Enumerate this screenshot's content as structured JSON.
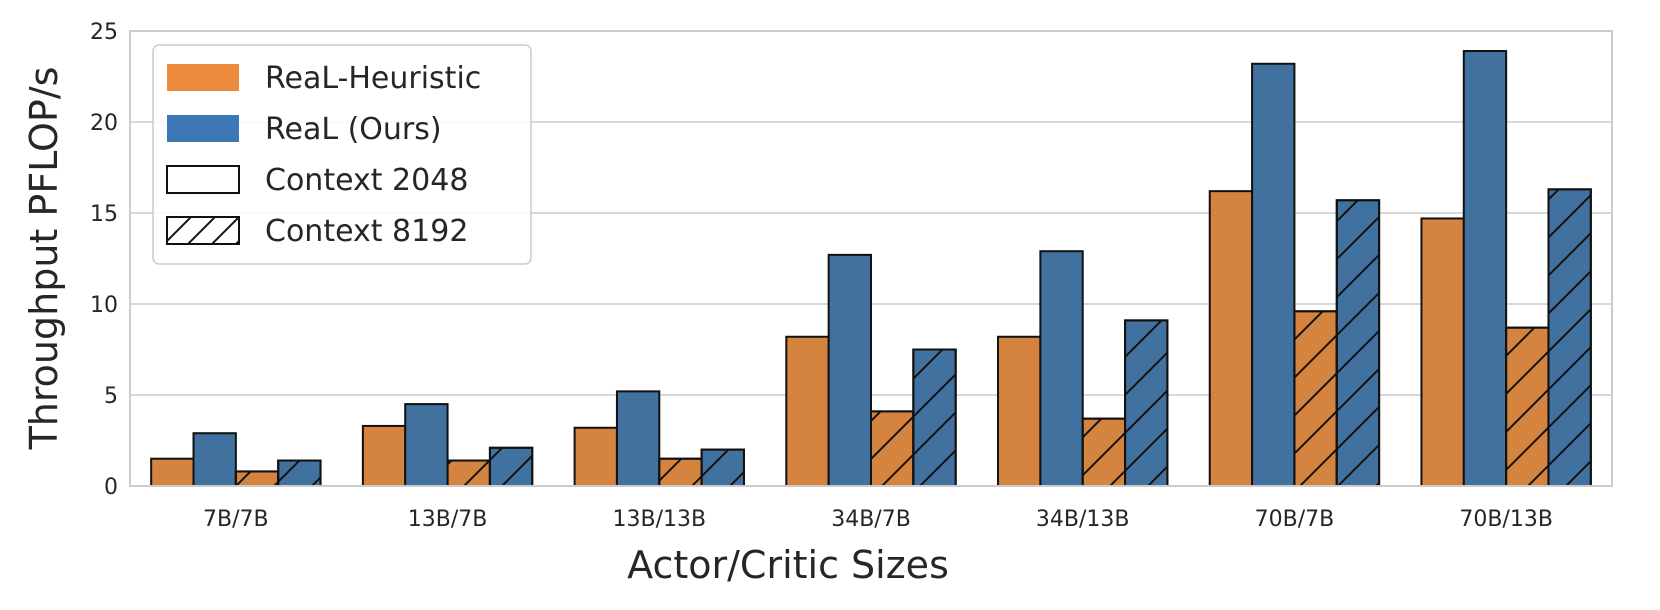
{
  "chart_data": {
    "type": "bar",
    "title": "",
    "xlabel": "Actor/Critic Sizes",
    "ylabel": "Throughput PFLOP/s",
    "ylim": [
      0,
      25
    ],
    "yticks": [
      0,
      5,
      10,
      15,
      20,
      25
    ],
    "grid": true,
    "legend_position": "top-left",
    "categories": [
      "7B/7B",
      "13B/7B",
      "13B/13B",
      "34B/7B",
      "34B/13B",
      "70B/7B",
      "70B/13B"
    ],
    "series": [
      {
        "name": "ReaL-Heuristic",
        "context": "Context 2048",
        "color": "#d5843f",
        "hatch": false,
        "values": [
          1.5,
          3.3,
          3.2,
          8.2,
          8.2,
          16.2,
          14.7
        ]
      },
      {
        "name": "ReaL (Ours)",
        "context": "Context 2048",
        "color": "#41719f",
        "hatch": false,
        "values": [
          2.9,
          4.5,
          5.2,
          12.7,
          12.9,
          23.2,
          23.9
        ]
      },
      {
        "name": "ReaL-Heuristic",
        "context": "Context 8192",
        "color": "#d5843f",
        "hatch": true,
        "values": [
          0.8,
          1.4,
          1.5,
          4.1,
          3.7,
          9.6,
          8.7
        ]
      },
      {
        "name": "ReaL (Ours)",
        "context": "Context 8192",
        "color": "#41719f",
        "hatch": true,
        "values": [
          1.4,
          2.1,
          2.0,
          7.5,
          9.1,
          15.7,
          16.3
        ]
      }
    ],
    "legend": [
      {
        "label": "ReaL-Heuristic",
        "swatch": "orange",
        "color": "#ed8a3b"
      },
      {
        "label": "ReaL (Ours)",
        "swatch": "blue",
        "color": "#3b78b5"
      },
      {
        "label": "Context 2048",
        "swatch": "outline"
      },
      {
        "label": "Context 8192",
        "swatch": "hatched"
      }
    ]
  }
}
